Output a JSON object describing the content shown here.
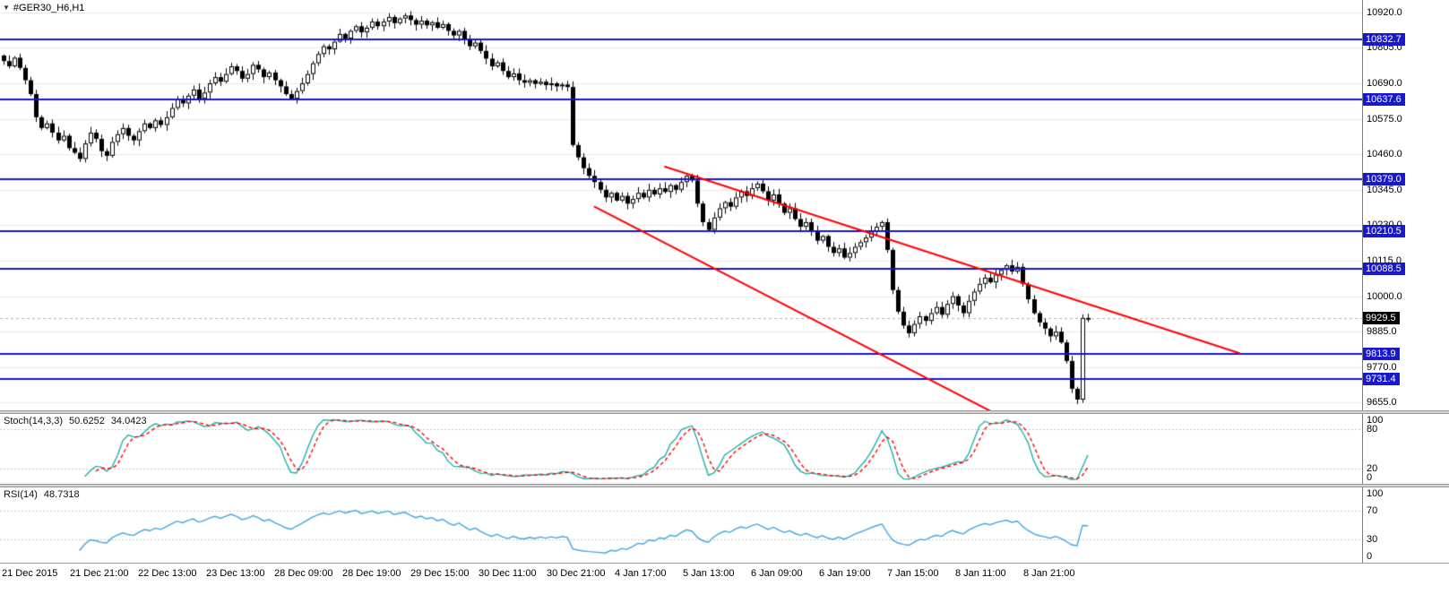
{
  "header": {
    "symbol_label": "#GER30_H6,H1",
    "dropdown_icon": "▼"
  },
  "price_axis": {
    "ticks": [
      "10920.0",
      "10805.0",
      "10690.0",
      "10575.0",
      "10460.0",
      "10345.0",
      "10230.0",
      "10115.0",
      "10000.0",
      "9885.0",
      "9770.0",
      "9655.0"
    ],
    "line_badges": [
      "10832.7",
      "10637.6",
      "10379.0",
      "10210.5",
      "10088.5",
      "9813.9",
      "9731.4"
    ],
    "bid_badge": "9929.5"
  },
  "stoch_panel": {
    "title": "Stoch(14,3,3)",
    "value_main": "50.6252",
    "value_signal": "34.0423",
    "axis": [
      "100",
      "80",
      "20",
      "0"
    ]
  },
  "rsi_panel": {
    "title": "RSI(14)",
    "value": "48.7318",
    "axis": [
      "100",
      "70",
      "30",
      "0"
    ]
  },
  "time_axis": {
    "labels": [
      "21 Dec 2015",
      "21 Dec 21:00",
      "22 Dec 13:00",
      "23 Dec 13:00",
      "28 Dec 09:00",
      "28 Dec 19:00",
      "29 Dec 15:00",
      "30 Dec 11:00",
      "30 Dec 21:00",
      "4 Jan 17:00",
      "5 Jan 13:00",
      "6 Jan 09:00",
      "6 Jan 19:00",
      "7 Jan 15:00",
      "8 Jan 11:00",
      "8 Jan 21:00"
    ]
  },
  "chart_data": [
    {
      "type": "candlestick",
      "title": "#GER30_H6,H1",
      "timeframe": "H1",
      "x_tick_labels": [
        "21 Dec 2015",
        "21 Dec 21:00",
        "22 Dec 13:00",
        "23 Dec 13:00",
        "28 Dec 09:00",
        "28 Dec 19:00",
        "29 Dec 15:00",
        "30 Dec 11:00",
        "30 Dec 21:00",
        "4 Jan 17:00",
        "5 Jan 13:00",
        "6 Jan 09:00",
        "6 Jan 19:00",
        "7 Jan 15:00",
        "8 Jan 11:00",
        "8 Jan 21:00"
      ],
      "ylim": [
        9630,
        10960
      ],
      "y_ticks": [
        10920,
        10805,
        10690,
        10575,
        10460,
        10345,
        10230,
        10115,
        10000,
        9885,
        9770,
        9655
      ],
      "closes": [
        10762,
        10745,
        10773,
        10740,
        10700,
        10655,
        10580,
        10545,
        10560,
        10530,
        10505,
        10520,
        10480,
        10465,
        10445,
        10495,
        10530,
        10510,
        10470,
        10455,
        10500,
        10525,
        10545,
        10520,
        10505,
        10535,
        10560,
        10545,
        10570,
        10555,
        10580,
        10610,
        10640,
        10625,
        10650,
        10670,
        10640,
        10660,
        10690,
        10710,
        10695,
        10720,
        10745,
        10730,
        10705,
        10720,
        10750,
        10735,
        10710,
        10725,
        10700,
        10680,
        10655,
        10640,
        10665,
        10690,
        10720,
        10755,
        10785,
        10810,
        10800,
        10825,
        10850,
        10835,
        10860,
        10875,
        10855,
        10870,
        10890,
        10875,
        10890,
        10905,
        10885,
        10900,
        10910,
        10895,
        10880,
        10893,
        10878,
        10888,
        10870,
        10882,
        10860,
        10845,
        10860,
        10835,
        10810,
        10822,
        10795,
        10770,
        10745,
        10758,
        10730,
        10710,
        10722,
        10700,
        10692,
        10700,
        10688,
        10695,
        10684,
        10690,
        10680,
        10686,
        10678,
        10490,
        10450,
        10415,
        10390,
        10370,
        10345,
        10320,
        10335,
        10310,
        10325,
        10300,
        10315,
        10335,
        10320,
        10345,
        10330,
        10350,
        10338,
        10360,
        10345,
        10370,
        10390,
        10375,
        10300,
        10240,
        10215,
        10255,
        10285,
        10305,
        10290,
        10320,
        10340,
        10325,
        10350,
        10365,
        10340,
        10310,
        10330,
        10300,
        10270,
        10285,
        10250,
        10225,
        10240,
        10210,
        10180,
        10195,
        10160,
        10140,
        10155,
        10125,
        10140,
        10160,
        10175,
        10190,
        10210,
        10225,
        10240,
        10150,
        10020,
        9950,
        9905,
        9880,
        9910,
        9935,
        9920,
        9945,
        9965,
        9940,
        9975,
        10000,
        9970,
        9945,
        9985,
        10015,
        10040,
        10060,
        10045,
        10070,
        10085,
        10100,
        10080,
        10095,
        10040,
        9990,
        9945,
        9915,
        9895,
        9870,
        9885,
        9850,
        9790,
        9700,
        9665,
        9929.5,
        9924
      ],
      "current_price": 9929.5,
      "horizontal_lines": [
        10832.7,
        10637.6,
        10379.0,
        10210.5,
        10088.5,
        9813.9,
        9731.4
      ],
      "trendlines": [
        {
          "from_index": 122,
          "from_price": 10420,
          "to_index": 228,
          "to_price": 9815
        },
        {
          "from_index": 109,
          "from_price": 10290,
          "to_index": 182,
          "to_price": 9628
        }
      ],
      "colors": {
        "hline": "#1818cc",
        "trend": "#ff0000",
        "bull": "#ffffff",
        "bear": "#000000",
        "outline": "#000000",
        "grid": "#e8e8e8",
        "bid_line": "#b0b0b0",
        "bid_badge": "#000000"
      }
    },
    {
      "type": "line",
      "name": "Stoch(14,3,3)",
      "params": [
        14,
        3,
        3
      ],
      "current_main": 50.6252,
      "current_signal": 34.0423,
      "levels": [
        100,
        80,
        20,
        0
      ],
      "range": [
        0,
        100
      ],
      "derived_from": "closes of the candlestick series",
      "colors": {
        "main": "#20b2aa",
        "signal": "#ff0000",
        "level": "#c8c8c8"
      }
    },
    {
      "type": "line",
      "name": "RSI(14)",
      "period": 14,
      "current": 48.7318,
      "levels": [
        100,
        70,
        30,
        0
      ],
      "range": [
        0,
        100
      ],
      "derived_from": "closes of the candlestick series",
      "colors": {
        "line": "#43a6dd",
        "level": "#c8c8c8"
      }
    }
  ]
}
